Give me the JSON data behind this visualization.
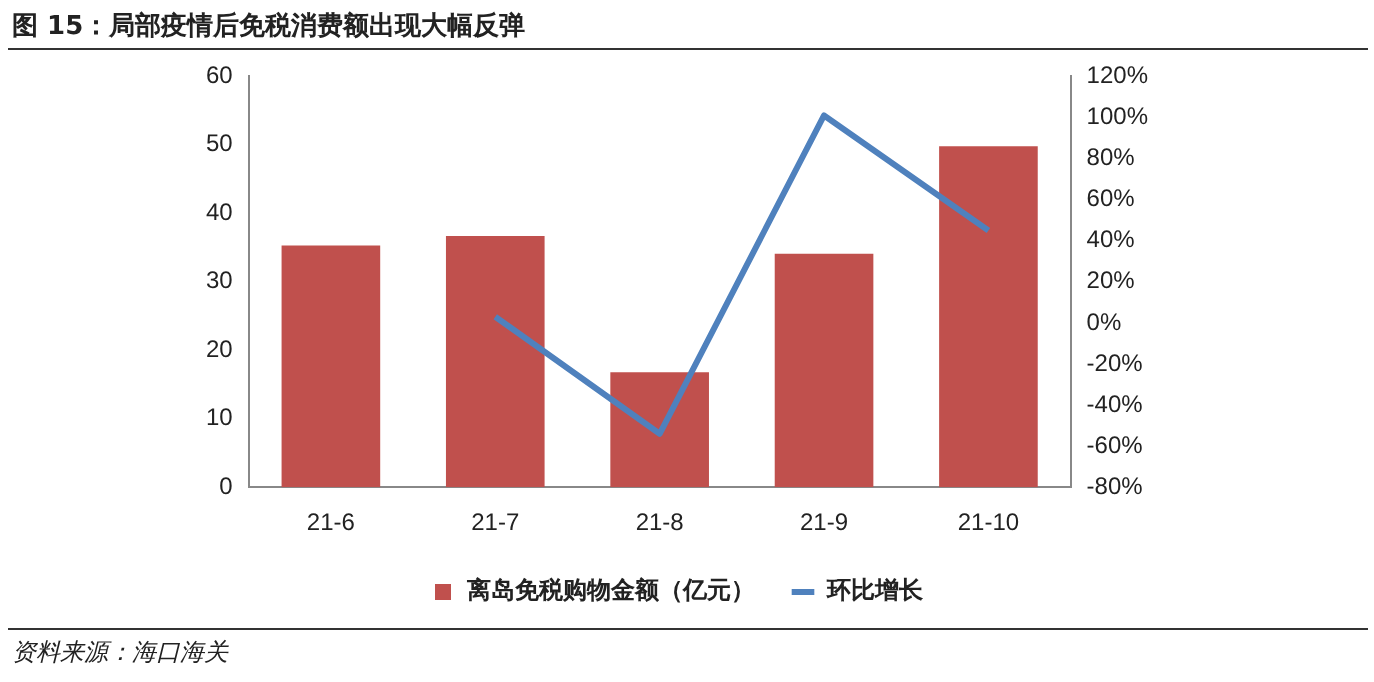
{
  "chart_data": {
    "type": "bar",
    "title": "图 15：局部疫情后免税消费额出现大幅反弹",
    "categories": [
      "21-6",
      "21-7",
      "21-8",
      "21-9",
      "21-10"
    ],
    "series": [
      {
        "name": "离岛免税购物金额（亿元）",
        "color": "#c0504d",
        "values": [
          35.3,
          36.7,
          16.8,
          34.1,
          49.8
        ]
      },
      {
        "name": "环比增长",
        "type": "line",
        "axis": "y2",
        "color": "#4f81bd",
        "values": [
          null,
          3,
          -54,
          101,
          45
        ]
      }
    ],
    "ylim": [
      0,
      60
    ],
    "yticks": [
      0,
      10,
      20,
      30,
      40,
      50,
      60
    ],
    "y2lim": [
      -80,
      120
    ],
    "y2ticks": [
      {
        "value": -80,
        "label": "-80%"
      },
      {
        "value": -60,
        "label": "-60%"
      },
      {
        "value": -40,
        "label": "-40%"
      },
      {
        "value": -20,
        "label": "-20%"
      },
      {
        "value": 0,
        "label": "0%"
      },
      {
        "value": 20,
        "label": "20%"
      },
      {
        "value": 40,
        "label": "40%"
      },
      {
        "value": 60,
        "label": "60%"
      },
      {
        "value": 80,
        "label": "80%"
      },
      {
        "value": 100,
        "label": "100%"
      },
      {
        "value": 120,
        "label": "120%"
      }
    ],
    "grid": false,
    "legend": "bottom",
    "marker": "none",
    "line_style": "solid",
    "annotations": [
      "资料来源：海口海关"
    ]
  }
}
